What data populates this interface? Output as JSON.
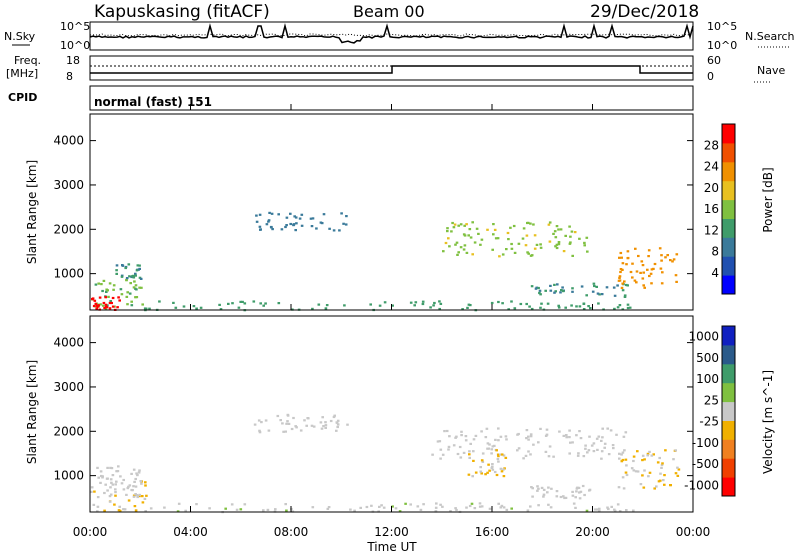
{
  "header": {
    "station": "Kapuskasing (fitACF)",
    "beam": "Beam 00",
    "date": "29/Dec/2018"
  },
  "labels": {
    "nsky": "N.Sky",
    "nsearch": "N.Search",
    "freq_top": "Freq.",
    "freq_unit": "[MHz]",
    "cpid": "CPID",
    "nave": "Nave",
    "mode": "normal (fast) 151",
    "x_title": "Time UT"
  },
  "noise_panel": {
    "left_ticks": [
      "10^5",
      "10^0"
    ],
    "right_ticks": [
      "10^5",
      "10^0"
    ]
  },
  "freq_panel": {
    "left_ticks": [
      "18",
      "8"
    ],
    "right_ticks": [
      "60",
      "0"
    ]
  },
  "colors": {
    "power_scale": [
      "#0000ff",
      "#2050b0",
      "#3a7a9a",
      "#3f9c6a",
      "#7fc040",
      "#e8c020",
      "#f09000",
      "#f05000",
      "#ff0000"
    ],
    "velocity_scale": [
      "#ff0000",
      "#f04000",
      "#f08020",
      "#f0b000",
      "#c8c8c8",
      "#7fc040",
      "#3f9c6a",
      "#2a5a8a",
      "#1020c0"
    ]
  },
  "chart_data": [
    {
      "type": "heatmap",
      "title": "",
      "xlabel": "Time UT",
      "ylabel": "Slant Range [km]",
      "x_ticks": [
        "00:00",
        "04:00",
        "08:00",
        "12:00",
        "16:00",
        "20:00",
        "00:00"
      ],
      "xlim_hours": [
        0,
        24
      ],
      "y_ticks": [
        1000,
        2000,
        3000,
        4000
      ],
      "ylim": [
        180,
        4600
      ],
      "colorbar": {
        "label": "Power [dB]",
        "ticks": [
          "4",
          "8",
          "12",
          "16",
          "20",
          "24",
          "28"
        ],
        "range": [
          0,
          30
        ]
      },
      "regions": [
        {
          "t0": 0.0,
          "t1": 2.2,
          "r0": 200,
          "r1": 900,
          "value": 14
        },
        {
          "t0": 0.0,
          "t1": 1.2,
          "r0": 200,
          "r1": 500,
          "value": 28
        },
        {
          "t0": 1.0,
          "t1": 2.0,
          "r0": 900,
          "r1": 1250,
          "value": 10
        },
        {
          "t0": 2.0,
          "t1": 22.0,
          "r0": 200,
          "r1": 400,
          "value": 12
        },
        {
          "t0": 6.5,
          "t1": 10.2,
          "r0": 2000,
          "r1": 2400,
          "value": 8
        },
        {
          "t0": 14.0,
          "t1": 19.8,
          "r0": 1400,
          "r1": 2200,
          "value": 16
        },
        {
          "t0": 17.5,
          "t1": 21.5,
          "r0": 500,
          "r1": 800,
          "value": 10
        },
        {
          "t0": 21.0,
          "t1": 23.4,
          "r0": 700,
          "r1": 1600,
          "value": 22
        }
      ]
    },
    {
      "type": "heatmap",
      "title": "",
      "xlabel": "Time UT",
      "ylabel": "Slant Range [km]",
      "x_ticks": [
        "00:00",
        "04:00",
        "08:00",
        "12:00",
        "16:00",
        "20:00",
        "00:00"
      ],
      "xlim_hours": [
        0,
        24
      ],
      "y_ticks": [
        1000,
        2000,
        3000,
        4000
      ],
      "ylim": [
        180,
        4600
      ],
      "colorbar": {
        "label": "Velocity [m s^-1]",
        "ticks": [
          "1000",
          "500",
          "100",
          "25",
          "-25",
          "-100",
          "-500",
          "-1000"
        ],
        "range": [
          -1000,
          1000
        ]
      },
      "regions": [
        {
          "t0": 0.0,
          "t1": 2.2,
          "r0": 200,
          "r1": 900,
          "value": -100
        },
        {
          "t0": 0.0,
          "t1": 2.0,
          "r0": 650,
          "r1": 1250,
          "value": 0
        },
        {
          "t0": 2.0,
          "t1": 22.0,
          "r0": 200,
          "r1": 400,
          "value": 50
        },
        {
          "t0": 6.5,
          "t1": 10.2,
          "r0": 2000,
          "r1": 2400,
          "value": 0
        },
        {
          "t0": 13.5,
          "t1": 21.5,
          "r0": 1400,
          "r1": 2100,
          "value": 0
        },
        {
          "t0": 15.0,
          "t1": 16.5,
          "r0": 1000,
          "r1": 1600,
          "value": -100
        },
        {
          "t0": 17.5,
          "t1": 20.0,
          "r0": 500,
          "r1": 800,
          "value": 0
        },
        {
          "t0": 21.0,
          "t1": 23.4,
          "r0": 700,
          "r1": 1600,
          "value": -100
        }
      ]
    }
  ]
}
